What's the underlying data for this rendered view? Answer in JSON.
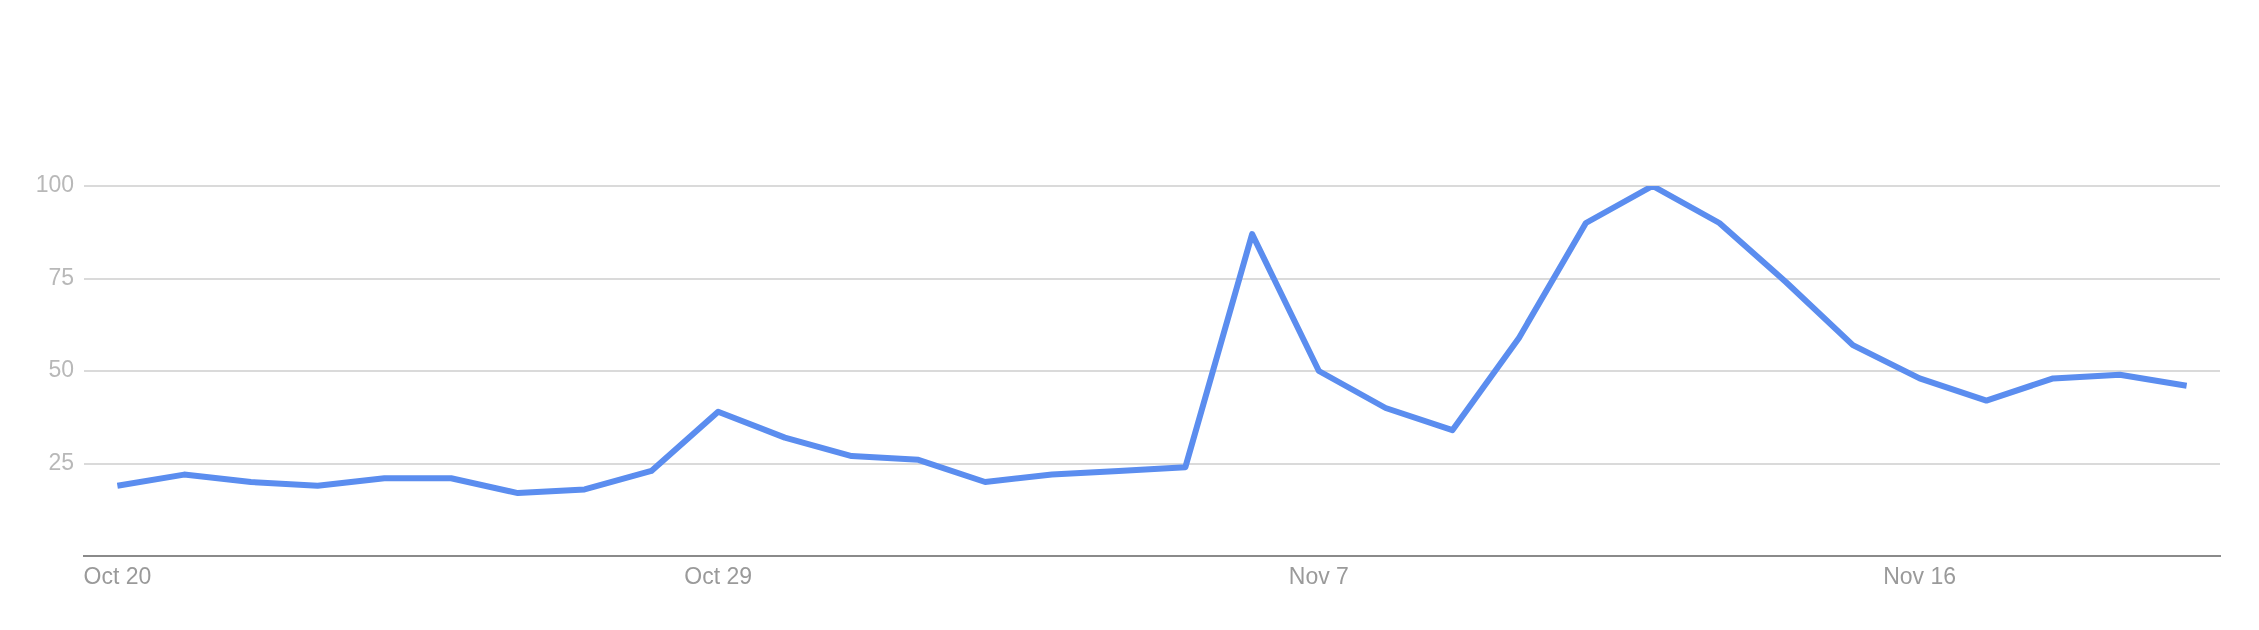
{
  "chart_data": {
    "type": "line",
    "categories": [
      "Oct 20",
      null,
      null,
      null,
      null,
      null,
      null,
      null,
      null,
      "Oct 29",
      null,
      null,
      null,
      null,
      null,
      null,
      null,
      null,
      "Nov 7",
      null,
      null,
      null,
      null,
      null,
      null,
      null,
      null,
      "Nov 16",
      null,
      null,
      null,
      null
    ],
    "series": [
      {
        "color": "#5b8def",
        "values": [
          19,
          22,
          20,
          19,
          21,
          21,
          17,
          18,
          23,
          39,
          32,
          27,
          26,
          20,
          22,
          23,
          24,
          87,
          50,
          40,
          34,
          59,
          90,
          100,
          90,
          74,
          57,
          48,
          42,
          48,
          49,
          46
        ]
      }
    ],
    "ylim": [
      0,
      100
    ],
    "yticks": [
      25,
      50,
      75,
      100
    ],
    "grid": "y"
  }
}
